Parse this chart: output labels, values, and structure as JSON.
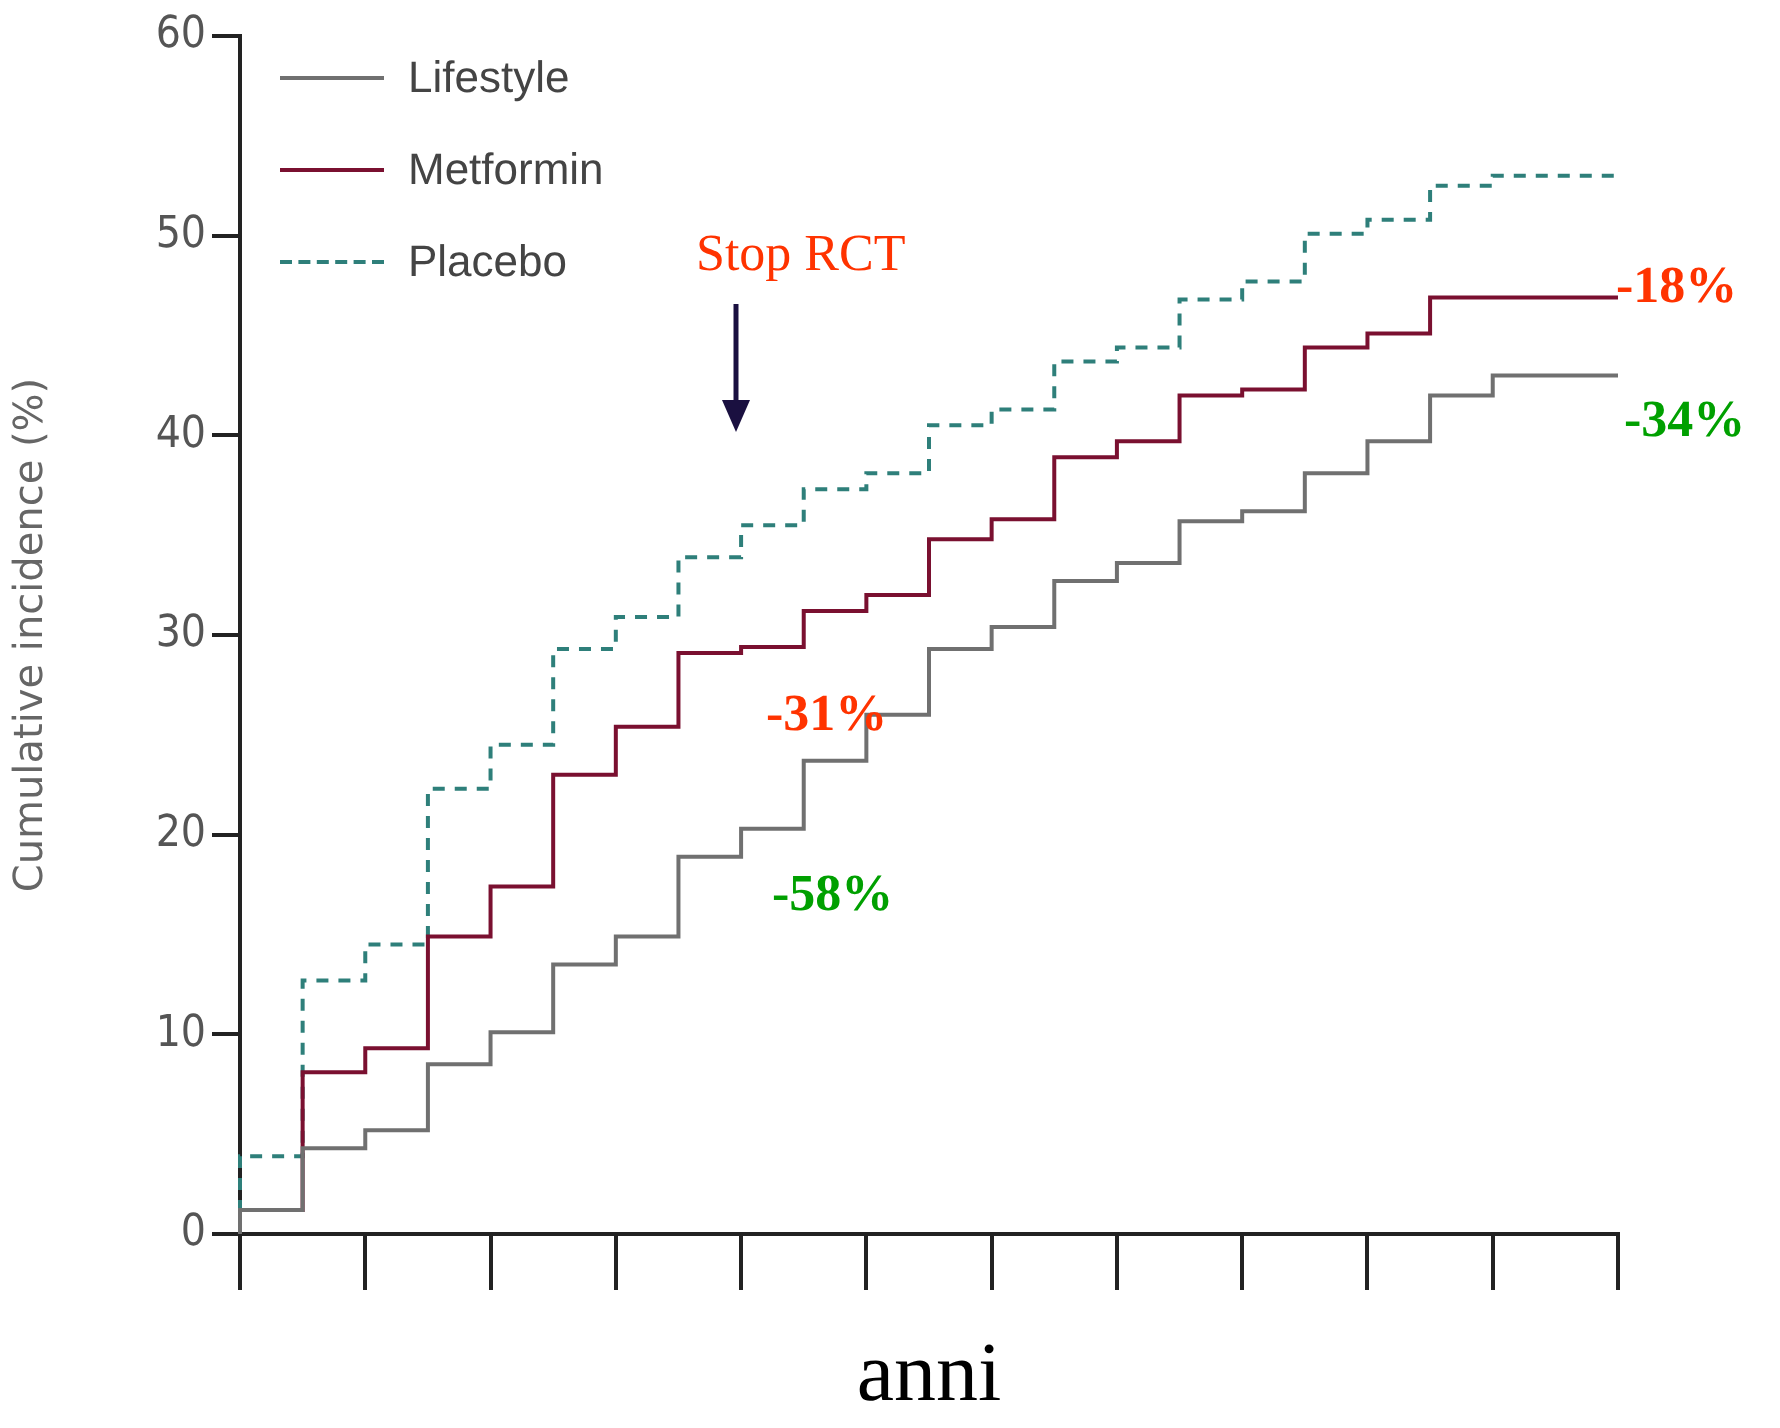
{
  "chart_data": {
    "type": "step",
    "xlabel": "anni",
    "ylabel": "Cumulative incidence (%)",
    "categories": [
      null,
      null,
      null,
      null,
      null,
      null,
      null,
      null,
      null,
      null,
      null,
      null,
      null,
      null,
      null,
      null,
      null,
      null,
      null,
      null,
      null,
      null,
      null
    ],
    "series": [
      {
        "name": "Lifestyle",
        "color": "#707070",
        "line_style": "solid",
        "values": [
          0,
          1.2,
          4.3,
          5.2,
          8.5,
          10.1,
          13.5,
          14.9,
          18.9,
          20.3,
          23.7,
          26.0,
          29.3,
          30.4,
          32.7,
          33.6,
          35.7,
          36.2,
          38.1,
          39.7,
          42.0,
          43.0,
          43.0
        ]
      },
      {
        "name": "Metformin",
        "color": "#7a1030",
        "line_style": "solid",
        "values": [
          0,
          1.2,
          8.1,
          9.3,
          14.9,
          17.4,
          23.0,
          25.4,
          29.1,
          29.4,
          31.2,
          32.0,
          34.8,
          35.8,
          38.9,
          39.7,
          42.0,
          42.3,
          44.4,
          45.1,
          46.9,
          46.9,
          46.9
        ]
      },
      {
        "name": "Placebo",
        "color": "#2e7f7a",
        "line_style": "dashed",
        "values": [
          0,
          3.9,
          12.7,
          14.5,
          22.3,
          24.5,
          29.3,
          30.9,
          33.9,
          35.5,
          37.3,
          38.1,
          40.5,
          41.3,
          43.7,
          44.4,
          46.8,
          47.7,
          50.1,
          50.8,
          52.5,
          53.0,
          53.0
        ]
      }
    ],
    "ylim": [
      0,
      60
    ],
    "yticks": [
      0,
      10,
      20,
      30,
      40,
      50,
      60
    ],
    "grid": false,
    "legend": "top left",
    "marker": "none",
    "annotations": [
      "Stop RCT",
      "-18%",
      "-34%",
      "-31%",
      "-58%"
    ]
  }
}
